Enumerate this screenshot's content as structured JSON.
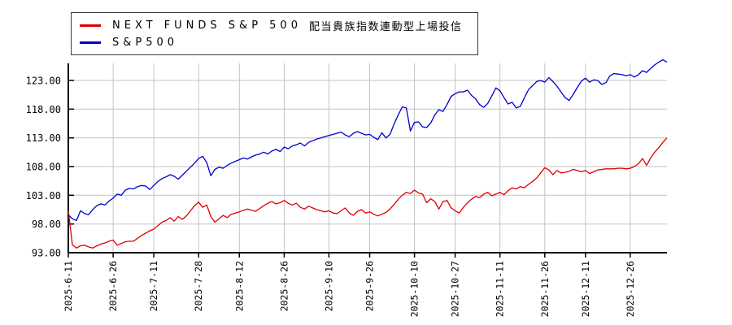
{
  "legend": {
    "items": [
      {
        "label_en": "NEXT FUNDS S&P 500",
        "label_ja": "配当貴族指数連動型上場投信",
        "color": "#dd0000"
      },
      {
        "label_en": "S&P500",
        "label_ja": "",
        "color": "#0000cc"
      }
    ]
  },
  "colors": {
    "fund_red": "#dd0000",
    "index_blue": "#0000cc",
    "grid": "#c4c4c4",
    "axis": "#000000",
    "background": "#ffffff"
  },
  "chart_data": {
    "type": "line",
    "title": "",
    "xlabel": "",
    "ylabel": "",
    "grid": true,
    "legend_position": "top-left",
    "ylim": [
      93,
      126.3
    ],
    "y_ticks": [
      93,
      98,
      103,
      108,
      113,
      118,
      123
    ],
    "y_tick_labels": [
      "93.00",
      "98.00",
      "103.00",
      "108.00",
      "113.00",
      "118.00",
      "123.00"
    ],
    "x_labels": [
      "2025-6-11",
      "2025-6-26",
      "2025-7-11",
      "2025-7-28",
      "2025-8-12",
      "2025-8-26",
      "2025-9-10",
      "2025-9-26",
      "2025-10-10",
      "2025-10-27",
      "2025-11-11",
      "2025-11-26",
      "2025-12-11",
      "2025-12-26"
    ],
    "x_label_indices": [
      0,
      11,
      21,
      32,
      42,
      53,
      64,
      74,
      85,
      95,
      106,
      117,
      127,
      138
    ],
    "series": [
      {
        "name": "NEXT FUNDS S&P 500 配当貴族指数連動型上場投信",
        "color": "#dd0000",
        "values": [
          100.3,
          94.4,
          93.8,
          94.2,
          94.3,
          94.0,
          93.8,
          94.2,
          94.5,
          94.7,
          95.0,
          95.2,
          94.3,
          94.6,
          94.9,
          95.0,
          95.0,
          95.5,
          96.0,
          96.4,
          96.8,
          97.1,
          97.7,
          98.3,
          98.6,
          99.1,
          98.5,
          99.3,
          98.8,
          99.4,
          100.3,
          101.2,
          101.8,
          100.9,
          101.3,
          99.3,
          98.3,
          98.9,
          99.5,
          99.1,
          99.7,
          99.9,
          100.1,
          100.4,
          100.6,
          100.4,
          100.2,
          100.7,
          101.2,
          101.6,
          101.9,
          101.5,
          101.7,
          102.1,
          101.6,
          101.3,
          101.6,
          100.9,
          100.6,
          101.1,
          100.8,
          100.5,
          100.3,
          100.1,
          100.3,
          99.9,
          99.8,
          100.3,
          100.8,
          99.9,
          99.5,
          100.2,
          100.5,
          99.9,
          100.1,
          99.7,
          99.4,
          99.7,
          100.0,
          100.6,
          101.4,
          102.3,
          103.0,
          103.5,
          103.3,
          103.9,
          103.4,
          103.2,
          101.7,
          102.4,
          101.9,
          100.6,
          101.9,
          102.1,
          100.8,
          100.3,
          99.9,
          100.9,
          101.7,
          102.3,
          102.8,
          102.6,
          103.2,
          103.5,
          102.9,
          103.2,
          103.5,
          103.1,
          103.8,
          104.3,
          104.1,
          104.5,
          104.3,
          104.9,
          105.4,
          106.0,
          106.9,
          107.8,
          107.4,
          106.6,
          107.3,
          106.9,
          107.0,
          107.2,
          107.5,
          107.3,
          107.1,
          107.3,
          106.8,
          107.1,
          107.4,
          107.5,
          107.6,
          107.6,
          107.6,
          107.7,
          107.7,
          107.6,
          107.7,
          108.0,
          108.5,
          109.4,
          108.2,
          109.5,
          110.5,
          111.3,
          112.2,
          113.0
        ]
      },
      {
        "name": "S&P500",
        "color": "#0000cc",
        "values": [
          99.6,
          98.9,
          98.6,
          100.3,
          99.8,
          99.6,
          100.5,
          101.2,
          101.5,
          101.3,
          102.0,
          102.5,
          103.2,
          103.0,
          103.9,
          104.2,
          104.1,
          104.5,
          104.7,
          104.6,
          104.0,
          104.7,
          105.4,
          105.9,
          106.2,
          106.6,
          106.3,
          105.8,
          106.5,
          107.2,
          107.9,
          108.6,
          109.4,
          109.8,
          108.7,
          106.4,
          107.5,
          107.9,
          107.7,
          108.2,
          108.6,
          108.9,
          109.2,
          109.5,
          109.3,
          109.7,
          110.0,
          110.2,
          110.5,
          110.2,
          110.7,
          111.0,
          110.6,
          111.4,
          111.1,
          111.6,
          111.8,
          112.1,
          111.6,
          112.2,
          112.5,
          112.8,
          113.0,
          113.2,
          113.4,
          113.6,
          113.8,
          114.0,
          113.5,
          113.2,
          113.8,
          114.1,
          113.8,
          113.5,
          113.6,
          113.1,
          112.7,
          113.9,
          113.0,
          113.6,
          115.4,
          117.0,
          118.4,
          118.2,
          114.2,
          115.7,
          115.8,
          114.9,
          114.8,
          115.6,
          117.0,
          117.9,
          117.6,
          118.8,
          120.2,
          120.7,
          121.0,
          121.0,
          121.3,
          120.4,
          119.8,
          118.8,
          118.3,
          119.0,
          120.3,
          121.7,
          121.2,
          120.0,
          118.9,
          119.2,
          118.2,
          118.5,
          120.0,
          121.4,
          122.1,
          122.8,
          123.0,
          122.7,
          123.5,
          122.8,
          122.0,
          121.0,
          120.0,
          119.5,
          120.6,
          121.8,
          122.9,
          123.4,
          122.7,
          123.1,
          123.0,
          122.3,
          122.6,
          123.8,
          124.2,
          124.1,
          124.0,
          123.8,
          124.0,
          123.6,
          124.0,
          124.7,
          124.4,
          125.1,
          125.7,
          126.2,
          126.6,
          126.2
        ]
      }
    ]
  }
}
